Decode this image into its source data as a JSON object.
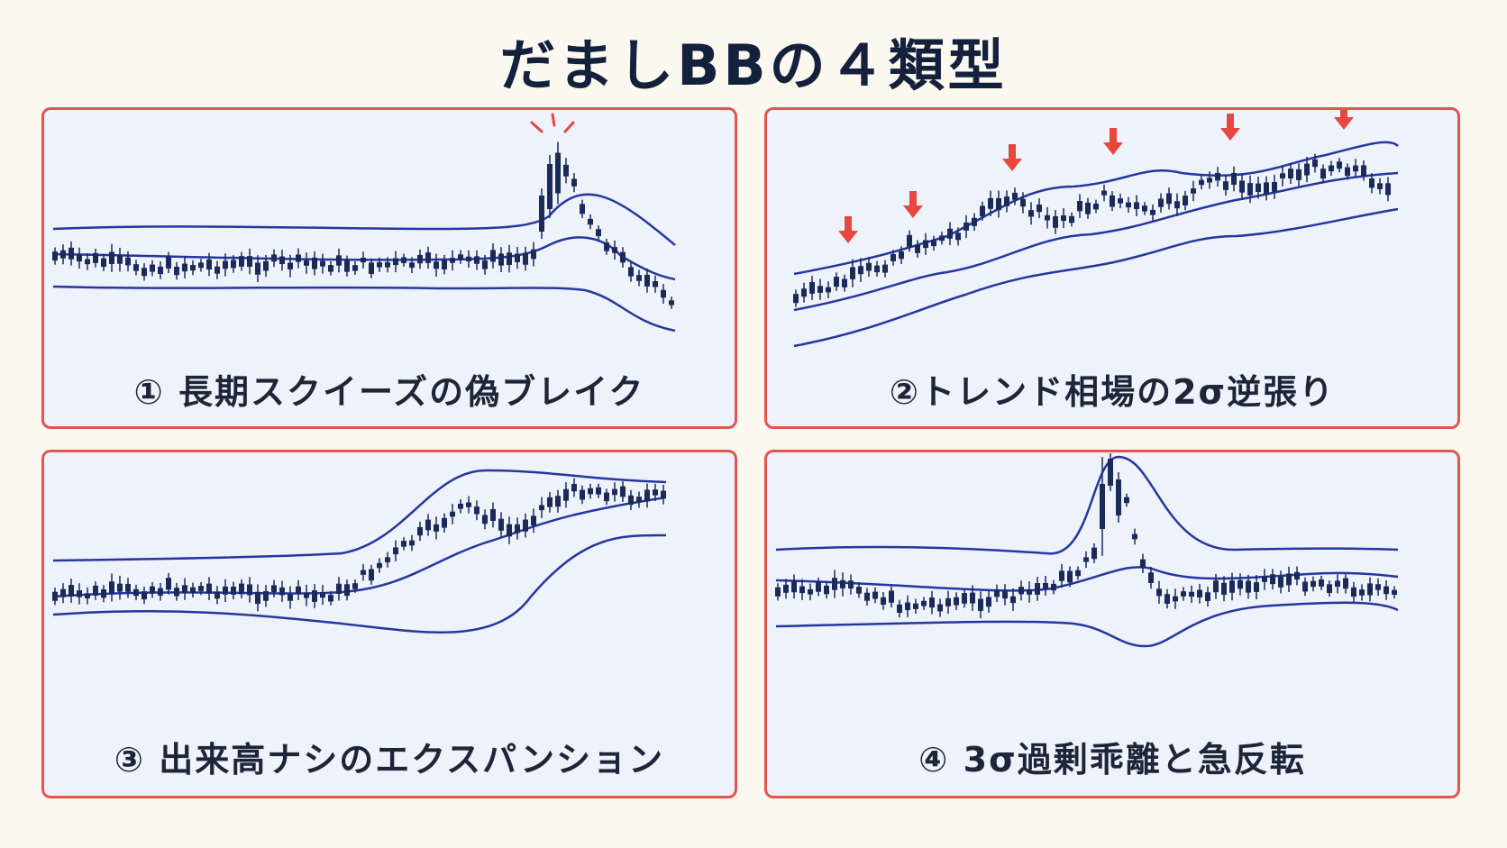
{
  "title": "だましBBの４類型",
  "panels": [
    {
      "caption": "① 長期スクイーズの偽ブレイク"
    },
    {
      "caption": "②トレンド相場の2σ逆張り"
    },
    {
      "caption": "③ 出来高ナシのエクスパンション"
    },
    {
      "caption": "④ 3σ過剰乖離と急反転"
    }
  ],
  "colors": {
    "border": "#e2554d",
    "band": "#2536a0",
    "candle": "#1c2a5a",
    "accent": "#e8473f",
    "panel_bg": "#eef3fb",
    "page_bg": "#fbf8ef"
  }
}
